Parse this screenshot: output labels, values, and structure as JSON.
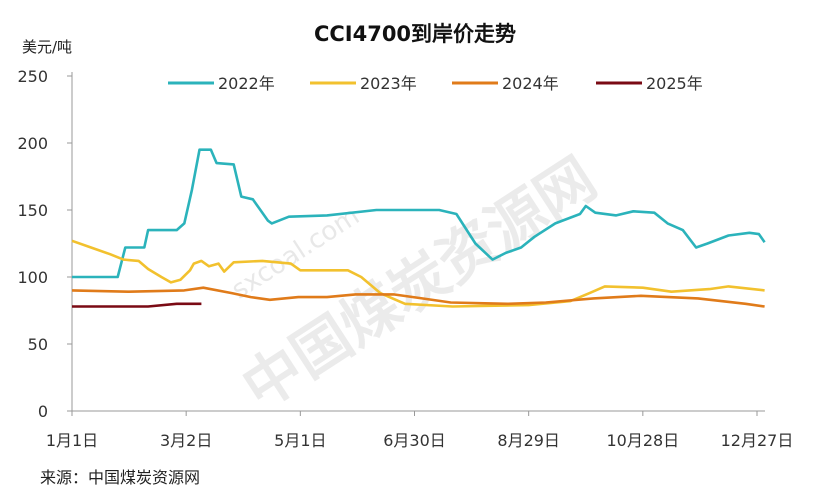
{
  "chart_data": {
    "type": "line",
    "title": "CCI4700到岸价走势",
    "ylabel": "美元/吨",
    "xlabel": "",
    "ylim": [
      0,
      250
    ],
    "yticks": [
      0,
      50,
      100,
      150,
      200,
      250
    ],
    "xticks": [
      {
        "label": "1月1日",
        "date": "01-01"
      },
      {
        "label": "3月2日",
        "date": "03-02"
      },
      {
        "label": "5月1日",
        "date": "05-01"
      },
      {
        "label": "6月30日",
        "date": "06-30"
      },
      {
        "label": "8月29日",
        "date": "08-29"
      },
      {
        "label": "10月28日",
        "date": "10-28"
      },
      {
        "label": "12月27日",
        "date": "12-27"
      }
    ],
    "grid": false,
    "legend": "top",
    "series": [
      {
        "name": "2022年",
        "color": "#2bb3bb",
        "points": [
          [
            "01-01",
            100
          ],
          [
            "01-25",
            100
          ],
          [
            "01-29",
            122
          ],
          [
            "02-08",
            122
          ],
          [
            "02-10",
            135
          ],
          [
            "02-25",
            135
          ],
          [
            "03-01",
            140
          ],
          [
            "03-05",
            165
          ],
          [
            "03-09",
            195
          ],
          [
            "03-15",
            195
          ],
          [
            "03-18",
            185
          ],
          [
            "03-27",
            184
          ],
          [
            "03-31",
            160
          ],
          [
            "04-06",
            158
          ],
          [
            "04-10",
            150
          ],
          [
            "04-14",
            142
          ],
          [
            "04-16",
            140
          ],
          [
            "04-25",
            145
          ],
          [
            "05-15",
            146
          ],
          [
            "06-10",
            150
          ],
          [
            "07-13",
            150
          ],
          [
            "07-22",
            147
          ],
          [
            "08-01",
            125
          ],
          [
            "08-10",
            113
          ],
          [
            "08-17",
            118
          ],
          [
            "08-25",
            122
          ],
          [
            "09-01",
            130
          ],
          [
            "09-12",
            140
          ],
          [
            "09-25",
            147
          ],
          [
            "09-28",
            153
          ],
          [
            "10-03",
            148
          ],
          [
            "10-14",
            146
          ],
          [
            "10-23",
            149
          ],
          [
            "11-03",
            148
          ],
          [
            "11-10",
            140
          ],
          [
            "11-18",
            135
          ],
          [
            "11-25",
            122
          ],
          [
            "12-01",
            125
          ],
          [
            "12-12",
            131
          ],
          [
            "12-23",
            133
          ],
          [
            "12-28",
            132
          ],
          [
            "12-31",
            126
          ]
        ]
      },
      {
        "name": "2023年",
        "color": "#f2c12e",
        "points": [
          [
            "01-01",
            127
          ],
          [
            "01-11",
            122
          ],
          [
            "01-21",
            117
          ],
          [
            "01-28",
            113
          ],
          [
            "02-05",
            112
          ],
          [
            "02-10",
            106
          ],
          [
            "02-17",
            100
          ],
          [
            "02-22",
            96
          ],
          [
            "02-27",
            98
          ],
          [
            "03-04",
            105
          ],
          [
            "03-06",
            110
          ],
          [
            "03-10",
            112
          ],
          [
            "03-14",
            108
          ],
          [
            "03-19",
            110
          ],
          [
            "03-22",
            104
          ],
          [
            "03-27",
            111
          ],
          [
            "04-11",
            112
          ],
          [
            "04-26",
            110
          ],
          [
            "05-01",
            105
          ],
          [
            "05-26",
            105
          ],
          [
            "06-02",
            100
          ],
          [
            "06-12",
            88
          ],
          [
            "06-25",
            80
          ],
          [
            "07-20",
            78
          ],
          [
            "08-29",
            79
          ],
          [
            "09-20",
            82
          ],
          [
            "09-30",
            88
          ],
          [
            "10-08",
            93
          ],
          [
            "10-28",
            92
          ],
          [
            "11-12",
            89
          ],
          [
            "12-02",
            91
          ],
          [
            "12-12",
            93
          ],
          [
            "12-31",
            90
          ]
        ]
      },
      {
        "name": "2024年",
        "color": "#e07b1a",
        "points": [
          [
            "01-01",
            90
          ],
          [
            "01-31",
            89
          ],
          [
            "03-01",
            90
          ],
          [
            "03-11",
            92
          ],
          [
            "03-26",
            88
          ],
          [
            "04-05",
            85
          ],
          [
            "04-15",
            83
          ],
          [
            "04-30",
            85
          ],
          [
            "05-15",
            85
          ],
          [
            "05-30",
            87
          ],
          [
            "06-19",
            87
          ],
          [
            "07-04",
            84
          ],
          [
            "07-19",
            81
          ],
          [
            "08-18",
            80
          ],
          [
            "09-07",
            81
          ],
          [
            "10-02",
            84
          ],
          [
            "10-27",
            86
          ],
          [
            "11-26",
            84
          ],
          [
            "12-21",
            80
          ],
          [
            "12-31",
            78
          ]
        ]
      },
      {
        "name": "2025年",
        "color": "#7a0a14",
        "points": [
          [
            "01-01",
            78
          ],
          [
            "01-31",
            78
          ],
          [
            "02-10",
            78
          ],
          [
            "02-25",
            80
          ],
          [
            "03-10",
            80
          ]
        ]
      }
    ]
  },
  "source": "来源：中国煤炭资源网",
  "watermark": {
    "url": "sxcoal.com",
    "name": "中国煤炭资源网"
  }
}
